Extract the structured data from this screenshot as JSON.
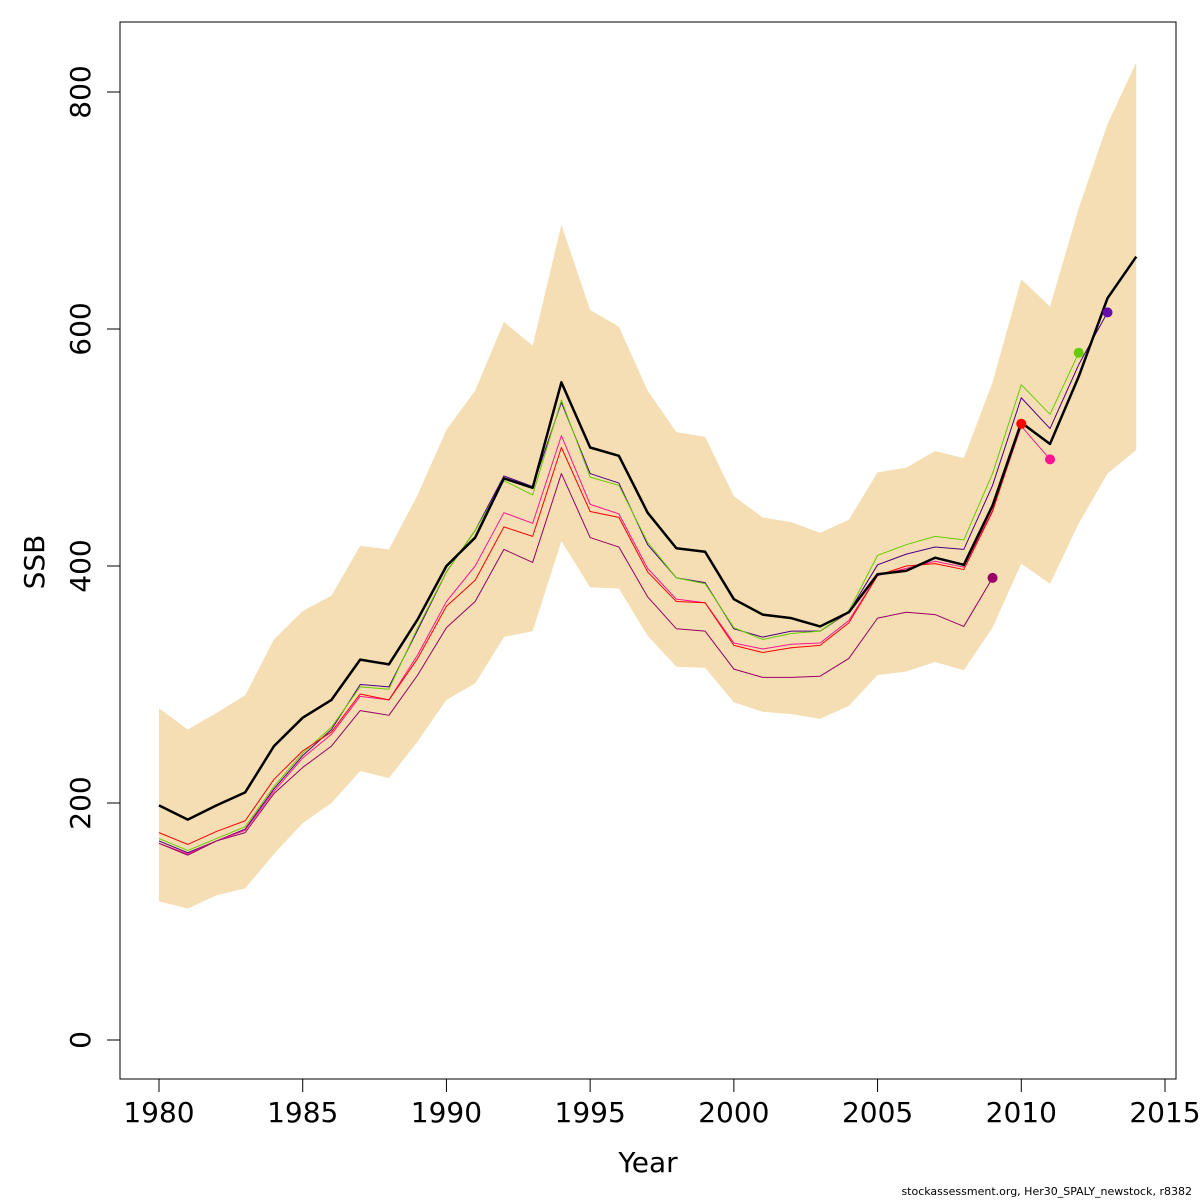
{
  "chart_data": {
    "type": "line",
    "title": "",
    "xlabel": "Year",
    "ylabel": "SSB",
    "xlim": [
      1980,
      2015
    ],
    "ylim": [
      0,
      800
    ],
    "x_ticks": [
      1980,
      1985,
      1990,
      1995,
      2000,
      2005,
      2010,
      2015
    ],
    "y_ticks": [
      0,
      200,
      400,
      600,
      800
    ],
    "grid": false,
    "legend": "none",
    "band": {
      "color": "#F5DEB3",
      "x": [
        1980,
        1981,
        1982,
        1983,
        1984,
        1985,
        1986,
        1987,
        1988,
        1989,
        1990,
        1991,
        1992,
        1993,
        1994,
        1995,
        1996,
        1997,
        1998,
        1999,
        2000,
        2001,
        2002,
        2003,
        2004,
        2005,
        2006,
        2007,
        2008,
        2009,
        2010,
        2011,
        2012,
        2013,
        2014
      ],
      "upper": [
        280,
        262,
        276,
        291,
        338,
        362,
        375,
        417,
        414,
        460,
        515,
        548,
        606,
        586,
        688,
        616,
        602,
        548,
        513,
        509,
        459,
        441,
        437,
        428,
        439,
        479,
        483,
        497,
        491,
        555,
        642,
        619,
        702,
        773,
        825
      ],
      "lower": [
        117,
        111,
        122,
        128,
        157,
        183,
        200,
        227,
        221,
        252,
        287,
        301,
        340,
        345,
        421,
        382,
        381,
        341,
        315,
        314,
        285,
        277,
        275,
        271,
        282,
        308,
        311,
        319,
        312,
        348,
        402,
        385,
        436,
        478,
        498
      ]
    },
    "series": [
      {
        "color": "#000000",
        "width": 2.5,
        "x": [
          1980,
          1981,
          1982,
          1983,
          1984,
          1985,
          1986,
          1987,
          1988,
          1989,
          1990,
          1991,
          1992,
          1993,
          1994,
          1995,
          1996,
          1997,
          1998,
          1999,
          2000,
          2001,
          2002,
          2003,
          2004,
          2005,
          2006,
          2007,
          2008,
          2009,
          2010,
          2011,
          2012,
          2013,
          2014
        ],
        "values": [
          198,
          186,
          198,
          209,
          248,
          272,
          287,
          321,
          317,
          355,
          400,
          424,
          474,
          466,
          555,
          500,
          493,
          445,
          415,
          412,
          372,
          359,
          356,
          349,
          361,
          393,
          396,
          407,
          401,
          451,
          521,
          503,
          560,
          626,
          661
        ]
      },
      {
        "color": "#4B0082",
        "width": 1,
        "x": [
          1980,
          1981,
          1982,
          1983,
          1984,
          1985,
          1986,
          1987,
          1988,
          1989,
          1990,
          1991,
          1992,
          1993,
          1994,
          1995,
          1996,
          1997,
          1998,
          1999,
          2000,
          2001,
          2002,
          2003,
          2004,
          2005,
          2006,
          2007,
          2008,
          2009,
          2010,
          2011,
          2012,
          2013
        ],
        "values": [
          168,
          158,
          168,
          178,
          212,
          240,
          262,
          300,
          298,
          346,
          395,
          430,
          476,
          467,
          538,
          478,
          470,
          418,
          390,
          386,
          347,
          340,
          345,
          345,
          361,
          401,
          410,
          416,
          414,
          468,
          542,
          516,
          570,
          614
        ],
        "point": {
          "x": 2013,
          "y": 614,
          "color": "#6A0DAD"
        }
      },
      {
        "color": "#66CC00",
        "width": 1,
        "x": [
          1980,
          1981,
          1982,
          1983,
          1984,
          1985,
          1986,
          1987,
          1988,
          1989,
          1990,
          1991,
          1992,
          1993,
          1994,
          1995,
          1996,
          1997,
          1998,
          1999,
          2000,
          2001,
          2002,
          2003,
          2004,
          2005,
          2006,
          2007,
          2008,
          2009,
          2010,
          2011,
          2012
        ],
        "values": [
          170,
          160,
          170,
          180,
          214,
          242,
          264,
          298,
          296,
          348,
          395,
          430,
          472,
          460,
          540,
          475,
          468,
          420,
          390,
          385,
          348,
          338,
          343,
          345,
          362,
          409,
          418,
          425,
          422,
          478,
          553,
          528,
          580
        ],
        "point": {
          "x": 2012,
          "y": 580,
          "color": "#66CC00"
        }
      },
      {
        "color": "#FF1493",
        "width": 1,
        "x": [
          1980,
          1981,
          1982,
          1983,
          1984,
          1985,
          1986,
          1987,
          1988,
          1989,
          1990,
          1991,
          1992,
          1993,
          1994,
          1995,
          1996,
          1997,
          1998,
          1999,
          2000,
          2001,
          2002,
          2003,
          2004,
          2005,
          2006,
          2007,
          2008,
          2009,
          2010,
          2011
        ],
        "values": [
          166,
          157,
          168,
          177,
          210,
          238,
          258,
          290,
          287,
          325,
          370,
          400,
          445,
          436,
          510,
          452,
          444,
          398,
          372,
          369,
          335,
          330,
          334,
          335,
          354,
          392,
          398,
          404,
          399,
          447,
          518,
          490
        ],
        "point": {
          "x": 2011,
          "y": 490,
          "color": "#FF1493"
        }
      },
      {
        "color": "#FF0000",
        "width": 1,
        "x": [
          1980,
          1981,
          1982,
          1983,
          1984,
          1985,
          1986,
          1987,
          1988,
          1989,
          1990,
          1991,
          1992,
          1993,
          1994,
          1995,
          1996,
          1997,
          1998,
          1999,
          2000,
          2001,
          2002,
          2003,
          2004,
          2005,
          2006,
          2007,
          2008,
          2009,
          2010
        ],
        "values": [
          175,
          165,
          176,
          185,
          220,
          244,
          260,
          292,
          287,
          322,
          366,
          388,
          433,
          425,
          500,
          446,
          441,
          395,
          370,
          369,
          333,
          327,
          331,
          333,
          352,
          392,
          400,
          402,
          397,
          446,
          520
        ],
        "point": {
          "x": 2010,
          "y": 520,
          "color": "#FF0000"
        }
      },
      {
        "color": "#990066",
        "width": 1,
        "x": [
          1980,
          1981,
          1982,
          1983,
          1984,
          1985,
          1986,
          1987,
          1988,
          1989,
          1990,
          1991,
          1992,
          1993,
          1994,
          1995,
          1996,
          1997,
          1998,
          1999,
          2000,
          2001,
          2002,
          2003,
          2004,
          2005,
          2006,
          2007,
          2008,
          2009
        ],
        "values": [
          166,
          156,
          168,
          175,
          208,
          230,
          248,
          278,
          274,
          308,
          348,
          370,
          414,
          403,
          478,
          424,
          416,
          374,
          347,
          345,
          313,
          306,
          306,
          307,
          322,
          356,
          361,
          359,
          349,
          390
        ],
        "point": {
          "x": 2009,
          "y": 390,
          "color": "#990066"
        }
      }
    ]
  },
  "footer_note": "stockassessment.org, Her30_SPALY_newstock, r8382"
}
